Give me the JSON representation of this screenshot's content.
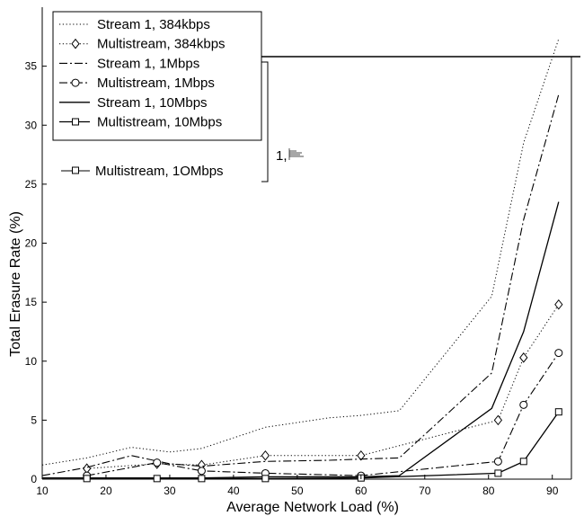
{
  "chart_data": {
    "type": "line",
    "xlabel": "Average Network Load (%)",
    "ylabel": "Total Erasure Rate (%)",
    "xlim": [
      10,
      93
    ],
    "ylim": [
      0,
      40
    ],
    "xticks": [
      10,
      20,
      30,
      40,
      50,
      60,
      70,
      80,
      90
    ],
    "yticks": [
      0,
      5,
      10,
      15,
      20,
      25,
      30,
      35
    ],
    "grid": false,
    "legend_position": "top-left",
    "series": [
      {
        "name": "Stream 1, 384kbps",
        "style": "dotted",
        "marker": "none",
        "x": [
          10,
          17,
          24,
          30,
          35,
          45,
          55,
          60,
          66,
          80.5,
          85.5,
          91
        ],
        "y": [
          1.2,
          1.8,
          2.7,
          2.3,
          2.6,
          4.4,
          5.2,
          5.4,
          5.8,
          15.5,
          28.5,
          37.3
        ]
      },
      {
        "name": "Multistream, 384kbps",
        "style": "dotted",
        "marker": "diamond",
        "x": [
          17,
          28,
          35,
          45,
          60,
          81.5,
          85.5,
          91
        ],
        "y": [
          0.9,
          1.3,
          1.2,
          2.0,
          2.0,
          5.0,
          10.3,
          14.8
        ]
      },
      {
        "name": "Stream 1, 1Mbps",
        "style": "dashdot",
        "marker": "none",
        "x": [
          10,
          17,
          24,
          30,
          35,
          45,
          55,
          60,
          66,
          80.5,
          85.5,
          91
        ],
        "y": [
          0.3,
          1.0,
          2.0,
          1.3,
          1.1,
          1.5,
          1.6,
          1.7,
          1.8,
          9.0,
          22.0,
          32.6
        ]
      },
      {
        "name": "Multistream, 1Mbps",
        "style": "dashdot",
        "marker": "circle",
        "x": [
          17,
          28,
          35,
          45,
          60,
          81.5,
          85.5,
          91
        ],
        "y": [
          0.3,
          1.4,
          0.7,
          0.5,
          0.3,
          1.5,
          6.3,
          10.7
        ]
      },
      {
        "name": "Stream 1, 10Mbps",
        "style": "solid",
        "marker": "none",
        "x": [
          10,
          17,
          24,
          30,
          35,
          45,
          55,
          60,
          66,
          80.5,
          85.5,
          91
        ],
        "y": [
          0.1,
          0.1,
          0.1,
          0.1,
          0.1,
          0.2,
          0.2,
          0.2,
          0.3,
          6.0,
          12.5,
          23.5
        ]
      },
      {
        "name": "Multistream, 10Mbps",
        "style": "solid",
        "marker": "square",
        "x": [
          17,
          28,
          35,
          45,
          60,
          81.5,
          85.5,
          91
        ],
        "y": [
          0.05,
          0.05,
          0.05,
          0.05,
          0.1,
          0.5,
          1.5,
          5.7
        ]
      }
    ],
    "artifacts": {
      "stray_legend_entry": "Multistream, 1OMbps",
      "stray_mark": "1,"
    }
  }
}
